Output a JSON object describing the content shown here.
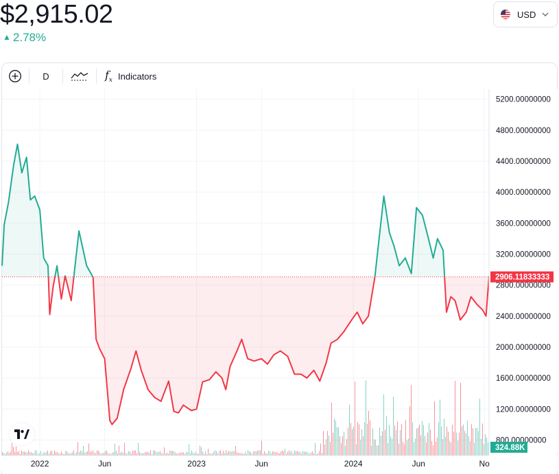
{
  "header": {
    "price": "$2,915.02",
    "change": "2.78%",
    "currency": "USD",
    "colors": {
      "up": "#22ab94",
      "down": "#f23645"
    }
  },
  "toolbar": {
    "interval": "D",
    "indicators_label": "Indicators"
  },
  "chart_data": {
    "type": "area",
    "baseline": 2906.11833333,
    "baseline_label": "2906.11833333",
    "volume_label": "324.88K",
    "ylim": [
      600,
      5330
    ],
    "y_ticks": [
      800,
      1200,
      1600,
      2000,
      2400,
      2800,
      3200,
      3600,
      4000,
      4400,
      4800,
      5200
    ],
    "y_tick_labels": [
      "800.00000000",
      "1200.00000000",
      "1600.00000000",
      "2000.00000000",
      "2400.00000000",
      "2800.00000000",
      "3200.00000000",
      "3600.00000000",
      "4000.00000000",
      "4400.00000000",
      "4800.00000000",
      "5200.00000000"
    ],
    "x_range": [
      "2021-10-05",
      "2024-11-12"
    ],
    "x_ticks": [
      "2022-01-01",
      "2022-06-01",
      "2023-01-01",
      "2023-06-01",
      "2024-01-01",
      "2024-06-01",
      "2024-11-01"
    ],
    "x_tick_labels": [
      "2022",
      "Jun",
      "2023",
      "Jun",
      "2024",
      "Jun",
      "No"
    ],
    "series": [
      {
        "x": [
          "2021-10-05",
          "2021-10-10",
          "2021-10-20",
          "2021-11-01",
          "2021-11-10",
          "2021-11-20",
          "2021-12-01",
          "2021-12-10",
          "2021-12-20",
          "2022-01-01",
          "2022-01-10",
          "2022-01-20",
          "2022-01-24",
          "2022-02-01",
          "2022-02-10",
          "2022-02-20",
          "2022-03-01",
          "2022-03-15",
          "2022-04-02",
          "2022-04-20",
          "2022-05-05",
          "2022-05-12",
          "2022-05-20",
          "2022-06-01",
          "2022-06-13",
          "2022-06-18",
          "2022-06-30",
          "2022-07-15",
          "2022-08-01",
          "2022-08-13",
          "2022-08-25",
          "2022-09-10",
          "2022-09-25",
          "2022-10-10",
          "2022-10-28",
          "2022-11-09",
          "2022-11-20",
          "2022-12-01",
          "2022-12-20",
          "2023-01-01",
          "2023-01-15",
          "2023-01-31",
          "2023-02-15",
          "2023-03-01",
          "2023-03-10",
          "2023-03-20",
          "2023-04-05",
          "2023-04-16",
          "2023-04-30",
          "2023-05-15",
          "2023-06-01",
          "2023-06-15",
          "2023-06-30",
          "2023-07-15",
          "2023-08-01",
          "2023-08-17",
          "2023-09-01",
          "2023-09-15",
          "2023-10-01",
          "2023-10-15",
          "2023-10-30",
          "2023-11-10",
          "2023-11-25",
          "2023-12-10",
          "2023-12-28",
          "2024-01-10",
          "2024-01-23",
          "2024-02-05",
          "2024-02-20",
          "2024-03-01",
          "2024-03-12",
          "2024-03-25",
          "2024-04-05",
          "2024-04-17",
          "2024-05-01",
          "2024-05-15",
          "2024-05-27",
          "2024-06-10",
          "2024-06-24",
          "2024-07-05",
          "2024-07-15",
          "2024-07-28",
          "2024-08-05",
          "2024-08-15",
          "2024-08-25",
          "2024-09-06",
          "2024-09-20",
          "2024-10-01",
          "2024-10-15",
          "2024-10-28",
          "2024-11-05",
          "2024-11-12"
        ],
        "values": [
          3050,
          3580,
          3870,
          4350,
          4620,
          4250,
          4450,
          3900,
          3950,
          3770,
          3150,
          3050,
          2420,
          2780,
          3050,
          2620,
          2920,
          2600,
          3500,
          3050,
          2900,
          2100,
          1980,
          1850,
          1050,
          1000,
          1080,
          1450,
          1720,
          1950,
          1700,
          1450,
          1350,
          1300,
          1560,
          1170,
          1150,
          1250,
          1180,
          1200,
          1550,
          1580,
          1680,
          1600,
          1450,
          1750,
          1950,
          2100,
          1850,
          1820,
          1850,
          1780,
          1900,
          1950,
          1880,
          1650,
          1650,
          1600,
          1700,
          1560,
          1800,
          2050,
          2100,
          2200,
          2350,
          2450,
          2300,
          2400,
          2900,
          3400,
          3950,
          3480,
          3300,
          3050,
          3150,
          2950,
          3800,
          3700,
          3400,
          3150,
          3400,
          3250,
          2450,
          2650,
          2600,
          2350,
          2450,
          2650,
          2550,
          2480,
          2400,
          2915
        ]
      }
    ]
  }
}
